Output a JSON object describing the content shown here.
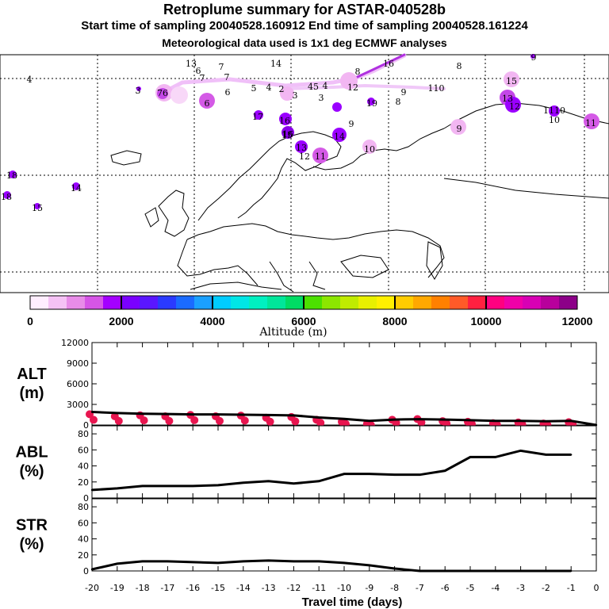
{
  "header": {
    "title": "Retroplume summary for ASTAR-040528b",
    "sampling": "Start time of sampling 20040528.160912     End time of sampling 20040528.161224",
    "meteo": "Meteorological data used is 1x1 deg ECMWF analyses"
  },
  "colors": {
    "alt_series": "#e8154f",
    "line": "#000000",
    "plume": "#cc33ff"
  },
  "map": {
    "labels": [
      {
        "text": "13",
        "c": "#000"
      },
      {
        "text": "7",
        "c": "#000"
      },
      {
        "text": "14",
        "c": "#000"
      },
      {
        "text": "6",
        "c": "#000"
      },
      {
        "text": "7",
        "c": "#000"
      },
      {
        "text": "7",
        "c": "#000"
      },
      {
        "text": "8",
        "c": "#000"
      },
      {
        "text": "16",
        "c": "#000"
      },
      {
        "text": "9",
        "c": "#000"
      },
      {
        "text": "8",
        "c": "#000"
      },
      {
        "text": "4",
        "c": "#000"
      },
      {
        "text": "6",
        "c": "#000"
      },
      {
        "text": "3",
        "c": "#000"
      },
      {
        "text": "76",
        "c": "#000"
      },
      {
        "text": "6",
        "c": "#000"
      },
      {
        "text": "5",
        "c": "#000"
      },
      {
        "text": "4",
        "c": "#000"
      },
      {
        "text": "2",
        "c": "#000"
      },
      {
        "text": "3",
        "c": "#000"
      },
      {
        "text": "45",
        "c": "#000"
      },
      {
        "text": "4",
        "c": "#000"
      },
      {
        "text": "3",
        "c": "#000"
      },
      {
        "text": "12",
        "c": "#000"
      },
      {
        "text": "9",
        "c": "#000"
      },
      {
        "text": "8",
        "c": "#000"
      },
      {
        "text": "110",
        "c": "#000"
      },
      {
        "text": "15",
        "c": "#000"
      },
      {
        "text": "13",
        "c": "#000"
      },
      {
        "text": "12",
        "c": "#000"
      },
      {
        "text": "17",
        "c": "#000"
      },
      {
        "text": "16",
        "c": "#000"
      },
      {
        "text": "18",
        "c": "#000"
      },
      {
        "text": "19",
        "c": "#000"
      },
      {
        "text": "15",
        "c": "#000"
      },
      {
        "text": "14",
        "c": "#000"
      },
      {
        "text": "9",
        "c": "#000"
      },
      {
        "text": "9",
        "c": "#000"
      },
      {
        "text": "1110",
        "c": "#000"
      },
      {
        "text": "10",
        "c": "#000"
      },
      {
        "text": "11",
        "c": "#000"
      },
      {
        "text": "13",
        "c": "#000"
      },
      {
        "text": "12",
        "c": "#000"
      },
      {
        "text": "11",
        "c": "#000"
      },
      {
        "text": "10",
        "c": "#000"
      },
      {
        "text": "18",
        "c": "#000"
      },
      {
        "text": "14",
        "c": "#000"
      },
      {
        "text": "16",
        "c": "#000"
      },
      {
        "text": "15",
        "c": "#000"
      }
    ]
  },
  "colorbar": {
    "colors": [
      "#ffeeff",
      "#f5c2f5",
      "#e88ce8",
      "#d655e6",
      "#a400ff",
      "#7a00ff",
      "#5a16ff",
      "#2a3aff",
      "#1a6bff",
      "#1aa0ff",
      "#00ccff",
      "#00e6e6",
      "#00f0c0",
      "#00e69a",
      "#00dc64",
      "#4ce000",
      "#8ce600",
      "#c0eb00",
      "#e8f000",
      "#fff000",
      "#ffcc00",
      "#ffa800",
      "#ff8000",
      "#ff5a28",
      "#ff2040",
      "#ff0080",
      "#f000a8",
      "#d800b4",
      "#b8009c",
      "#8c0088"
    ],
    "ticks": [
      "0",
      "2000",
      "4000",
      "6000",
      "8000",
      "10000",
      "12000"
    ],
    "label": "Altitude (m)"
  },
  "panels": {
    "alt": {
      "label_top": "ALT",
      "label_bot": "(m)",
      "ticks": [
        "0",
        "3000",
        "6000",
        "9000",
        "12000"
      ]
    },
    "abl": {
      "label_top": "ABL",
      "label_bot": "(%)",
      "ticks": [
        "0",
        "20",
        "40",
        "60",
        "80"
      ]
    },
    "str": {
      "label_top": "STR",
      "label_bot": "(%)",
      "ticks": [
        "0",
        "20",
        "40",
        "60",
        "80"
      ]
    },
    "xticks": [
      "-20",
      "-19",
      "-18",
      "-17",
      "-16",
      "-15",
      "-14",
      "-13",
      "-12",
      "-11",
      "-10",
      "-9",
      "-8",
      "-7",
      "-6",
      "-5",
      "-4",
      "-3",
      "-2",
      "-1",
      "0"
    ],
    "xlabel": "Travel time (days)"
  },
  "chart_data": [
    {
      "type": "line",
      "title": "ALT",
      "ylabel": "ALT (m)",
      "xlabel": "Travel time (days)",
      "ylim": [
        0,
        12000
      ],
      "xlim": [
        -20,
        0
      ],
      "series": [
        {
          "name": "mean altitude",
          "x": [
            -20,
            -19,
            -18,
            -17,
            -16,
            -15,
            -14,
            -13,
            -12,
            -11,
            -10,
            -9,
            -8,
            -7,
            -6,
            -5,
            -4,
            -3,
            -2,
            -1,
            0
          ],
          "values": [
            1900,
            1750,
            1650,
            1600,
            1550,
            1550,
            1500,
            1450,
            1400,
            1100,
            900,
            600,
            800,
            850,
            800,
            700,
            600,
            600,
            550,
            600,
            0
          ]
        },
        {
          "name": "plume clusters",
          "x": [
            -20,
            -19,
            -18,
            -17,
            -16,
            -15,
            -14,
            -13,
            -12,
            -11,
            -10,
            -9,
            -8,
            -7,
            -6,
            -5,
            -4,
            -3,
            -2,
            -1
          ],
          "values": [
            1800,
            1500,
            1650,
            1500,
            1700,
            1500,
            1600,
            1300,
            1400,
            1000,
            700,
            400,
            1000,
            1100,
            800,
            700,
            500,
            600,
            450,
            650
          ]
        }
      ]
    },
    {
      "type": "line",
      "title": "ABL",
      "ylabel": "ABL (%)",
      "ylim": [
        0,
        90
      ],
      "xlim": [
        -20,
        0
      ],
      "series": [
        {
          "name": "ABL",
          "x": [
            -20,
            -19,
            -18,
            -17,
            -16,
            -15,
            -14,
            -13,
            -12,
            -11,
            -10,
            -9,
            -8,
            -7,
            -6,
            -5,
            -4,
            -3,
            -2,
            -1
          ],
          "values": [
            10,
            12,
            15,
            15,
            15,
            16,
            19,
            21,
            18,
            21,
            30,
            30,
            29,
            29,
            34,
            51,
            51,
            59,
            54,
            54
          ]
        }
      ]
    },
    {
      "type": "line",
      "title": "STR",
      "ylabel": "STR (%)",
      "ylim": [
        0,
        90
      ],
      "xlim": [
        -20,
        0
      ],
      "series": [
        {
          "name": "STR",
          "x": [
            -20,
            -19,
            -18,
            -17,
            -16,
            -15,
            -14,
            -13,
            -12,
            -11,
            -10,
            -9,
            -8,
            -7,
            -6,
            -5,
            -4,
            -3,
            -2,
            -1
          ],
          "values": [
            2,
            9,
            12,
            12,
            11,
            10,
            12,
            13,
            12,
            12,
            10,
            7,
            3,
            0,
            0,
            0,
            0,
            0,
            0,
            0
          ]
        }
      ]
    }
  ]
}
